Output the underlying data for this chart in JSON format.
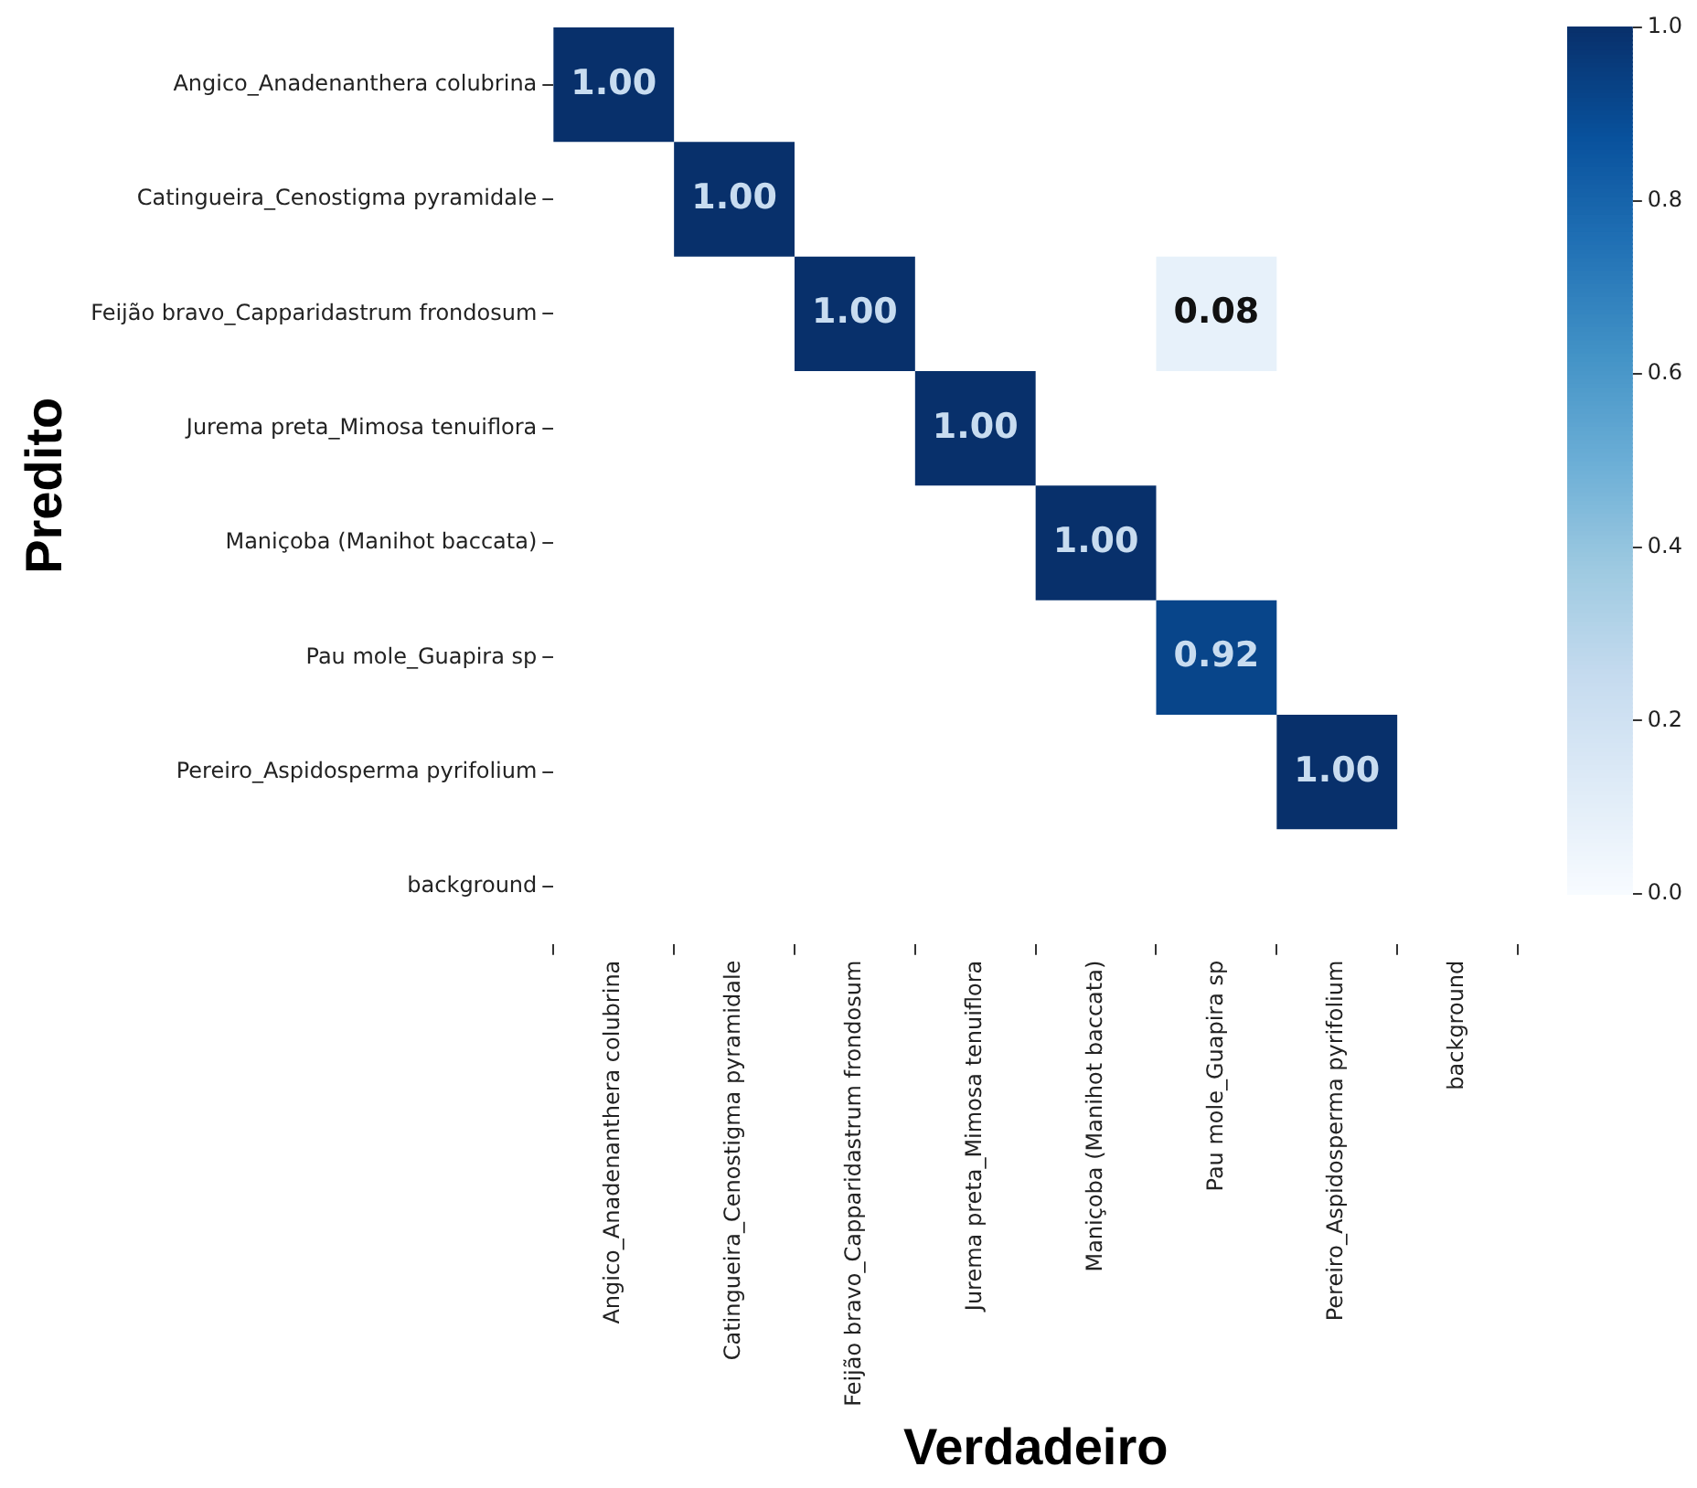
{
  "chart_data": {
    "type": "heatmap",
    "xlabel": "Verdadeiro",
    "ylabel": "Predito",
    "categories": [
      "Angico_Anadenanthera colubrina",
      "Catingueira_Cenostigma pyramidale",
      "Feijão bravo_Capparidastrum frondosum",
      "Jurema preta_Mimosa tenuiflora",
      "Maniçoba (Manihot baccata)",
      "Pau mole_Guapira sp",
      "Pereiro_Aspidosperma pyrifolium",
      "background"
    ],
    "y_categories": [
      "Angico_Anadenanthera colubrina",
      "Catingueira_Cenostigma pyramidale",
      "Feijão bravo_Capparidastrum frondosum",
      "Jurema preta_Mimosa tenuiflora",
      "Maniçoba (Manihot baccata)",
      "Pau mole_Guapira sp",
      "Pereiro_Aspidosperma pyrifolium",
      "background"
    ],
    "cells": [
      [
        1,
        null,
        null,
        null,
        null,
        null,
        null,
        null
      ],
      [
        null,
        1,
        null,
        null,
        null,
        null,
        null,
        null
      ],
      [
        null,
        null,
        1,
        null,
        null,
        0.08,
        null,
        null
      ],
      [
        null,
        null,
        null,
        1,
        null,
        null,
        null,
        null
      ],
      [
        null,
        null,
        null,
        null,
        1,
        null,
        null,
        null
      ],
      [
        null,
        null,
        null,
        null,
        null,
        0.92,
        null,
        null
      ],
      [
        null,
        null,
        null,
        null,
        null,
        null,
        1,
        null
      ],
      [
        null,
        null,
        null,
        null,
        null,
        null,
        null,
        null
      ]
    ],
    "cell_labels": [
      [
        "1.00",
        null,
        null,
        null,
        null,
        null,
        null,
        null
      ],
      [
        null,
        "1.00",
        null,
        null,
        null,
        null,
        null,
        null
      ],
      [
        null,
        null,
        "1.00",
        null,
        null,
        "0.08",
        null,
        null
      ],
      [
        null,
        null,
        null,
        "1.00",
        null,
        null,
        null,
        null
      ],
      [
        null,
        null,
        null,
        null,
        "1.00",
        null,
        null,
        null
      ],
      [
        null,
        null,
        null,
        null,
        null,
        "0.92",
        null,
        null
      ],
      [
        null,
        null,
        null,
        null,
        null,
        null,
        "1.00",
        null
      ],
      [
        null,
        null,
        null,
        null,
        null,
        null,
        null,
        null
      ]
    ],
    "clim": [
      0,
      1
    ],
    "cticks": [
      {
        "value": 0,
        "label": "0.0"
      },
      {
        "value": 0.2,
        "label": "0.2"
      },
      {
        "value": 0.4,
        "label": "0.4"
      },
      {
        "value": 0.6,
        "label": "0.6"
      },
      {
        "value": 0.8,
        "label": "0.8"
      },
      {
        "value": 1,
        "label": "1.0"
      }
    ]
  }
}
